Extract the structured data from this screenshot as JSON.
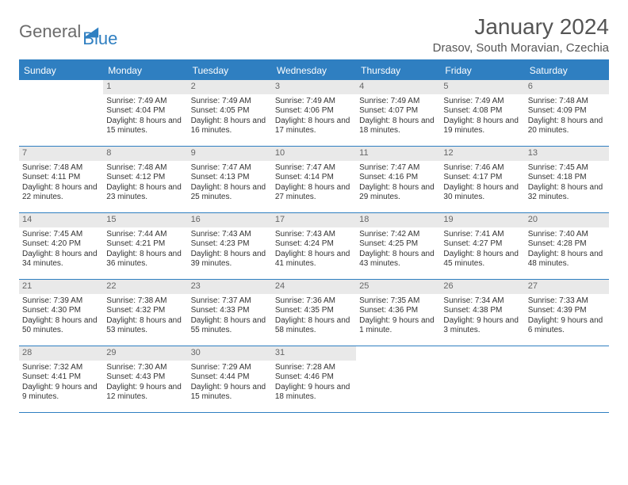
{
  "brand": {
    "text1": "General",
    "text2": "Blue"
  },
  "title": "January 2024",
  "location": "Drasov, South Moravian, Czechia",
  "colors": {
    "accent": "#2f7fc1",
    "daynum_bg": "#e9e9e9",
    "text": "#333333",
    "muted": "#6b6b6b"
  },
  "weekdays": [
    "Sunday",
    "Monday",
    "Tuesday",
    "Wednesday",
    "Thursday",
    "Friday",
    "Saturday"
  ],
  "cells": [
    {
      "n": "",
      "sun": "",
      "set": "",
      "day": "",
      "empty": true
    },
    {
      "n": "1",
      "sun": "Sunrise: 7:49 AM",
      "set": "Sunset: 4:04 PM",
      "day": "Daylight: 8 hours and 15 minutes."
    },
    {
      "n": "2",
      "sun": "Sunrise: 7:49 AM",
      "set": "Sunset: 4:05 PM",
      "day": "Daylight: 8 hours and 16 minutes."
    },
    {
      "n": "3",
      "sun": "Sunrise: 7:49 AM",
      "set": "Sunset: 4:06 PM",
      "day": "Daylight: 8 hours and 17 minutes."
    },
    {
      "n": "4",
      "sun": "Sunrise: 7:49 AM",
      "set": "Sunset: 4:07 PM",
      "day": "Daylight: 8 hours and 18 minutes."
    },
    {
      "n": "5",
      "sun": "Sunrise: 7:49 AM",
      "set": "Sunset: 4:08 PM",
      "day": "Daylight: 8 hours and 19 minutes."
    },
    {
      "n": "6",
      "sun": "Sunrise: 7:48 AM",
      "set": "Sunset: 4:09 PM",
      "day": "Daylight: 8 hours and 20 minutes."
    },
    {
      "n": "7",
      "sun": "Sunrise: 7:48 AM",
      "set": "Sunset: 4:11 PM",
      "day": "Daylight: 8 hours and 22 minutes."
    },
    {
      "n": "8",
      "sun": "Sunrise: 7:48 AM",
      "set": "Sunset: 4:12 PM",
      "day": "Daylight: 8 hours and 23 minutes."
    },
    {
      "n": "9",
      "sun": "Sunrise: 7:47 AM",
      "set": "Sunset: 4:13 PM",
      "day": "Daylight: 8 hours and 25 minutes."
    },
    {
      "n": "10",
      "sun": "Sunrise: 7:47 AM",
      "set": "Sunset: 4:14 PM",
      "day": "Daylight: 8 hours and 27 minutes."
    },
    {
      "n": "11",
      "sun": "Sunrise: 7:47 AM",
      "set": "Sunset: 4:16 PM",
      "day": "Daylight: 8 hours and 29 minutes."
    },
    {
      "n": "12",
      "sun": "Sunrise: 7:46 AM",
      "set": "Sunset: 4:17 PM",
      "day": "Daylight: 8 hours and 30 minutes."
    },
    {
      "n": "13",
      "sun": "Sunrise: 7:45 AM",
      "set": "Sunset: 4:18 PM",
      "day": "Daylight: 8 hours and 32 minutes."
    },
    {
      "n": "14",
      "sun": "Sunrise: 7:45 AM",
      "set": "Sunset: 4:20 PM",
      "day": "Daylight: 8 hours and 34 minutes."
    },
    {
      "n": "15",
      "sun": "Sunrise: 7:44 AM",
      "set": "Sunset: 4:21 PM",
      "day": "Daylight: 8 hours and 36 minutes."
    },
    {
      "n": "16",
      "sun": "Sunrise: 7:43 AM",
      "set": "Sunset: 4:23 PM",
      "day": "Daylight: 8 hours and 39 minutes."
    },
    {
      "n": "17",
      "sun": "Sunrise: 7:43 AM",
      "set": "Sunset: 4:24 PM",
      "day": "Daylight: 8 hours and 41 minutes."
    },
    {
      "n": "18",
      "sun": "Sunrise: 7:42 AM",
      "set": "Sunset: 4:25 PM",
      "day": "Daylight: 8 hours and 43 minutes."
    },
    {
      "n": "19",
      "sun": "Sunrise: 7:41 AM",
      "set": "Sunset: 4:27 PM",
      "day": "Daylight: 8 hours and 45 minutes."
    },
    {
      "n": "20",
      "sun": "Sunrise: 7:40 AM",
      "set": "Sunset: 4:28 PM",
      "day": "Daylight: 8 hours and 48 minutes."
    },
    {
      "n": "21",
      "sun": "Sunrise: 7:39 AM",
      "set": "Sunset: 4:30 PM",
      "day": "Daylight: 8 hours and 50 minutes."
    },
    {
      "n": "22",
      "sun": "Sunrise: 7:38 AM",
      "set": "Sunset: 4:32 PM",
      "day": "Daylight: 8 hours and 53 minutes."
    },
    {
      "n": "23",
      "sun": "Sunrise: 7:37 AM",
      "set": "Sunset: 4:33 PM",
      "day": "Daylight: 8 hours and 55 minutes."
    },
    {
      "n": "24",
      "sun": "Sunrise: 7:36 AM",
      "set": "Sunset: 4:35 PM",
      "day": "Daylight: 8 hours and 58 minutes."
    },
    {
      "n": "25",
      "sun": "Sunrise: 7:35 AM",
      "set": "Sunset: 4:36 PM",
      "day": "Daylight: 9 hours and 1 minute."
    },
    {
      "n": "26",
      "sun": "Sunrise: 7:34 AM",
      "set": "Sunset: 4:38 PM",
      "day": "Daylight: 9 hours and 3 minutes."
    },
    {
      "n": "27",
      "sun": "Sunrise: 7:33 AM",
      "set": "Sunset: 4:39 PM",
      "day": "Daylight: 9 hours and 6 minutes."
    },
    {
      "n": "28",
      "sun": "Sunrise: 7:32 AM",
      "set": "Sunset: 4:41 PM",
      "day": "Daylight: 9 hours and 9 minutes."
    },
    {
      "n": "29",
      "sun": "Sunrise: 7:30 AM",
      "set": "Sunset: 4:43 PM",
      "day": "Daylight: 9 hours and 12 minutes."
    },
    {
      "n": "30",
      "sun": "Sunrise: 7:29 AM",
      "set": "Sunset: 4:44 PM",
      "day": "Daylight: 9 hours and 15 minutes."
    },
    {
      "n": "31",
      "sun": "Sunrise: 7:28 AM",
      "set": "Sunset: 4:46 PM",
      "day": "Daylight: 9 hours and 18 minutes."
    },
    {
      "n": "",
      "sun": "",
      "set": "",
      "day": "",
      "empty": true
    },
    {
      "n": "",
      "sun": "",
      "set": "",
      "day": "",
      "empty": true
    },
    {
      "n": "",
      "sun": "",
      "set": "",
      "day": "",
      "empty": true
    }
  ]
}
